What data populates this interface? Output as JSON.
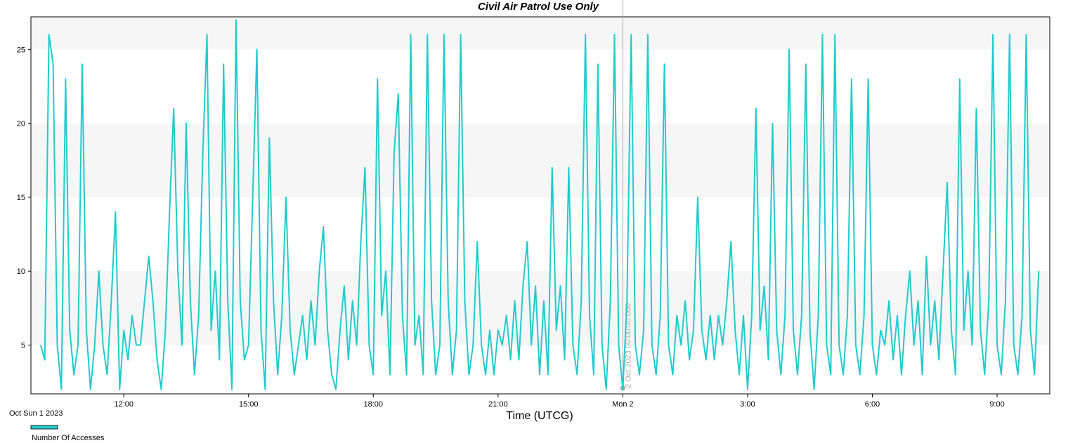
{
  "chart_data": {
    "type": "line",
    "title": "Civil Air Patrol Use Only",
    "x_label": "Time (UTCG)",
    "date_label": "Oct Sun 1 2023",
    "x": [
      "2023-10-01 10:00",
      "2023-10-01 10:06",
      "2023-10-01 10:12",
      "2023-10-01 10:18",
      "2023-10-01 10:24",
      "2023-10-01 10:30",
      "2023-10-01 10:36",
      "2023-10-01 10:42",
      "2023-10-01 10:48",
      "2023-10-01 10:54",
      "2023-10-01 11:00",
      "2023-10-01 11:06",
      "2023-10-01 11:12",
      "2023-10-01 11:18",
      "2023-10-01 11:24",
      "2023-10-01 11:30",
      "2023-10-01 11:36",
      "2023-10-01 11:42",
      "2023-10-01 11:48",
      "2023-10-01 11:54",
      "2023-10-01 12:00",
      "2023-10-01 12:06",
      "2023-10-01 12:12",
      "2023-10-01 12:18",
      "2023-10-01 12:24",
      "2023-10-01 12:30",
      "2023-10-01 12:36",
      "2023-10-01 12:42",
      "2023-10-01 12:48",
      "2023-10-01 12:54",
      "2023-10-01 13:00",
      "2023-10-01 13:06",
      "2023-10-01 13:12",
      "2023-10-01 13:18",
      "2023-10-01 13:24",
      "2023-10-01 13:30",
      "2023-10-01 13:36",
      "2023-10-01 13:42",
      "2023-10-01 13:48",
      "2023-10-01 13:54",
      "2023-10-01 14:00",
      "2023-10-01 14:06",
      "2023-10-01 14:12",
      "2023-10-01 14:18",
      "2023-10-01 14:24",
      "2023-10-01 14:30",
      "2023-10-01 14:36",
      "2023-10-01 14:42",
      "2023-10-01 14:48",
      "2023-10-01 14:54",
      "2023-10-01 15:00",
      "2023-10-01 15:06",
      "2023-10-01 15:12",
      "2023-10-01 15:18",
      "2023-10-01 15:24",
      "2023-10-01 15:30",
      "2023-10-01 15:36",
      "2023-10-01 15:42",
      "2023-10-01 15:48",
      "2023-10-01 15:54",
      "2023-10-01 16:00",
      "2023-10-01 16:06",
      "2023-10-01 16:12",
      "2023-10-01 16:18",
      "2023-10-01 16:24",
      "2023-10-01 16:30",
      "2023-10-01 16:36",
      "2023-10-01 16:42",
      "2023-10-01 16:48",
      "2023-10-01 16:54",
      "2023-10-01 17:00",
      "2023-10-01 17:06",
      "2023-10-01 17:12",
      "2023-10-01 17:18",
      "2023-10-01 17:24",
      "2023-10-01 17:30",
      "2023-10-01 17:36",
      "2023-10-01 17:42",
      "2023-10-01 17:48",
      "2023-10-01 17:54",
      "2023-10-01 18:00",
      "2023-10-01 18:06",
      "2023-10-01 18:12",
      "2023-10-01 18:18",
      "2023-10-01 18:24",
      "2023-10-01 18:30",
      "2023-10-01 18:36",
      "2023-10-01 18:42",
      "2023-10-01 18:48",
      "2023-10-01 18:54",
      "2023-10-01 19:00",
      "2023-10-01 19:06",
      "2023-10-01 19:12",
      "2023-10-01 19:18",
      "2023-10-01 19:24",
      "2023-10-01 19:30",
      "2023-10-01 19:36",
      "2023-10-01 19:42",
      "2023-10-01 19:48",
      "2023-10-01 19:54",
      "2023-10-01 20:00",
      "2023-10-01 20:06",
      "2023-10-01 20:12",
      "2023-10-01 20:18",
      "2023-10-01 20:24",
      "2023-10-01 20:30",
      "2023-10-01 20:36",
      "2023-10-01 20:42",
      "2023-10-01 20:48",
      "2023-10-01 20:54",
      "2023-10-01 21:00",
      "2023-10-01 21:06",
      "2023-10-01 21:12",
      "2023-10-01 21:18",
      "2023-10-01 21:24",
      "2023-10-01 21:30",
      "2023-10-01 21:36",
      "2023-10-01 21:42",
      "2023-10-01 21:48",
      "2023-10-01 21:54",
      "2023-10-01 22:00",
      "2023-10-01 22:06",
      "2023-10-01 22:12",
      "2023-10-01 22:18",
      "2023-10-01 22:24",
      "2023-10-01 22:30",
      "2023-10-01 22:36",
      "2023-10-01 22:42",
      "2023-10-01 22:48",
      "2023-10-01 22:54",
      "2023-10-01 23:00",
      "2023-10-01 23:06",
      "2023-10-01 23:12",
      "2023-10-01 23:18",
      "2023-10-01 23:24",
      "2023-10-01 23:30",
      "2023-10-01 23:36",
      "2023-10-01 23:42",
      "2023-10-01 23:48",
      "2023-10-01 23:54",
      "2023-10-02 00:00",
      "2023-10-02 00:06",
      "2023-10-02 00:12",
      "2023-10-02 00:18",
      "2023-10-02 00:24",
      "2023-10-02 00:30",
      "2023-10-02 00:36",
      "2023-10-02 00:42",
      "2023-10-02 00:48",
      "2023-10-02 00:54",
      "2023-10-02 01:00",
      "2023-10-02 01:06",
      "2023-10-02 01:12",
      "2023-10-02 01:18",
      "2023-10-02 01:24",
      "2023-10-02 01:30",
      "2023-10-02 01:36",
      "2023-10-02 01:42",
      "2023-10-02 01:48",
      "2023-10-02 01:54",
      "2023-10-02 02:00",
      "2023-10-02 02:06",
      "2023-10-02 02:12",
      "2023-10-02 02:18",
      "2023-10-02 02:24",
      "2023-10-02 02:30",
      "2023-10-02 02:36",
      "2023-10-02 02:42",
      "2023-10-02 02:48",
      "2023-10-02 02:54",
      "2023-10-02 03:00",
      "2023-10-02 03:06",
      "2023-10-02 03:12",
      "2023-10-02 03:18",
      "2023-10-02 03:24",
      "2023-10-02 03:30",
      "2023-10-02 03:36",
      "2023-10-02 03:42",
      "2023-10-02 03:48",
      "2023-10-02 03:54",
      "2023-10-02 04:00",
      "2023-10-02 04:06",
      "2023-10-02 04:12",
      "2023-10-02 04:18",
      "2023-10-02 04:24",
      "2023-10-02 04:30",
      "2023-10-02 04:36",
      "2023-10-02 04:42",
      "2023-10-02 04:48",
      "2023-10-02 04:54",
      "2023-10-02 05:00",
      "2023-10-02 05:06",
      "2023-10-02 05:12",
      "2023-10-02 05:18",
      "2023-10-02 05:24",
      "2023-10-02 05:30",
      "2023-10-02 05:36",
      "2023-10-02 05:42",
      "2023-10-02 05:48",
      "2023-10-02 05:54",
      "2023-10-02 06:00",
      "2023-10-02 06:06",
      "2023-10-02 06:12",
      "2023-10-02 06:18",
      "2023-10-02 06:24",
      "2023-10-02 06:30",
      "2023-10-02 06:36",
      "2023-10-02 06:42",
      "2023-10-02 06:48",
      "2023-10-02 06:54",
      "2023-10-02 07:00",
      "2023-10-02 07:06",
      "2023-10-02 07:12",
      "2023-10-02 07:18",
      "2023-10-02 07:24",
      "2023-10-02 07:30",
      "2023-10-02 07:36",
      "2023-10-02 07:42",
      "2023-10-02 07:48",
      "2023-10-02 07:54",
      "2023-10-02 08:00",
      "2023-10-02 08:06",
      "2023-10-02 08:12",
      "2023-10-02 08:18",
      "2023-10-02 08:24",
      "2023-10-02 08:30",
      "2023-10-02 08:36",
      "2023-10-02 08:42",
      "2023-10-02 08:48",
      "2023-10-02 08:54",
      "2023-10-02 09:00",
      "2023-10-02 09:06",
      "2023-10-02 09:12",
      "2023-10-02 09:18",
      "2023-10-02 09:24",
      "2023-10-02 09:30",
      "2023-10-02 09:36",
      "2023-10-02 09:42",
      "2023-10-02 09:48",
      "2023-10-02 09:54",
      "2023-10-02 10:00"
    ],
    "series": [
      {
        "name": "Number Of Accesses",
        "color": "#1ecccc",
        "values": [
          5,
          4,
          26,
          24,
          5,
          2,
          23,
          6,
          3,
          5,
          24,
          6,
          2,
          5,
          10,
          5,
          3,
          8,
          14,
          2,
          6,
          4,
          7,
          5,
          5,
          8,
          11,
          8,
          4,
          2,
          6,
          14,
          21,
          10,
          5,
          20,
          8,
          3,
          7,
          18,
          26,
          6,
          10,
          4,
          24,
          8,
          2,
          27,
          8,
          4,
          5,
          15,
          25,
          6,
          2,
          19,
          8,
          3,
          7,
          15,
          6,
          3,
          5,
          7,
          4,
          8,
          5,
          10,
          13,
          6,
          3,
          2,
          6,
          9,
          4,
          8,
          5,
          12,
          17,
          5,
          3,
          23,
          7,
          10,
          3,
          18,
          22,
          7,
          3,
          26,
          5,
          7,
          3,
          26,
          8,
          3,
          5,
          26,
          8,
          3,
          6,
          26,
          8,
          3,
          5,
          12,
          5,
          3,
          6,
          3,
          6,
          5,
          7,
          4,
          8,
          4,
          9,
          12,
          5,
          9,
          3,
          8,
          3,
          17,
          6,
          9,
          4,
          17,
          5,
          3,
          8,
          26,
          7,
          3,
          24,
          5,
          2,
          8,
          26,
          5,
          2,
          8,
          26,
          5,
          3,
          6,
          26,
          5,
          3,
          7,
          24,
          5,
          3,
          7,
          5,
          8,
          4,
          6,
          15,
          6,
          4,
          7,
          4,
          7,
          5,
          8,
          12,
          6,
          3,
          7,
          2,
          7,
          21,
          6,
          9,
          4,
          20,
          6,
          3,
          7,
          25,
          6,
          3,
          7,
          24,
          6,
          2,
          7,
          26,
          5,
          3,
          26,
          5,
          3,
          7,
          23,
          5,
          3,
          7,
          23,
          5,
          3,
          6,
          5,
          8,
          4,
          7,
          3,
          7,
          10,
          5,
          8,
          3,
          11,
          5,
          8,
          4,
          10,
          16,
          6,
          3,
          23,
          6,
          10,
          5,
          21,
          6,
          3,
          8,
          26,
          5,
          3,
          8,
          26,
          5,
          3,
          7,
          26,
          6,
          3,
          10
        ]
      }
    ],
    "xlim": [
      "2023-10-01 09:46",
      "2023-10-02 10:16"
    ],
    "xticks": [
      {
        "value": "2023-10-01 12:00",
        "label": "12:00"
      },
      {
        "value": "2023-10-01 15:00",
        "label": "15:00"
      },
      {
        "value": "2023-10-01 18:00",
        "label": "18:00"
      },
      {
        "value": "2023-10-01 21:00",
        "label": "21:00"
      },
      {
        "value": "2023-10-02 00:00",
        "label": "Mon 2"
      },
      {
        "value": "2023-10-02 03:00",
        "label": "3:00"
      },
      {
        "value": "2023-10-02 06:00",
        "label": "6:00"
      },
      {
        "value": "2023-10-02 09:00",
        "label": "9:00"
      }
    ],
    "ylim": [
      1.7,
      27.2
    ],
    "yticks": [
      5,
      10,
      15,
      20,
      25
    ],
    "grid": "bands",
    "legend": "bottom-left",
    "cursor": {
      "x": "2023-10-02 00:00",
      "label": "2 Oct 2023 00:00:00.000"
    }
  }
}
